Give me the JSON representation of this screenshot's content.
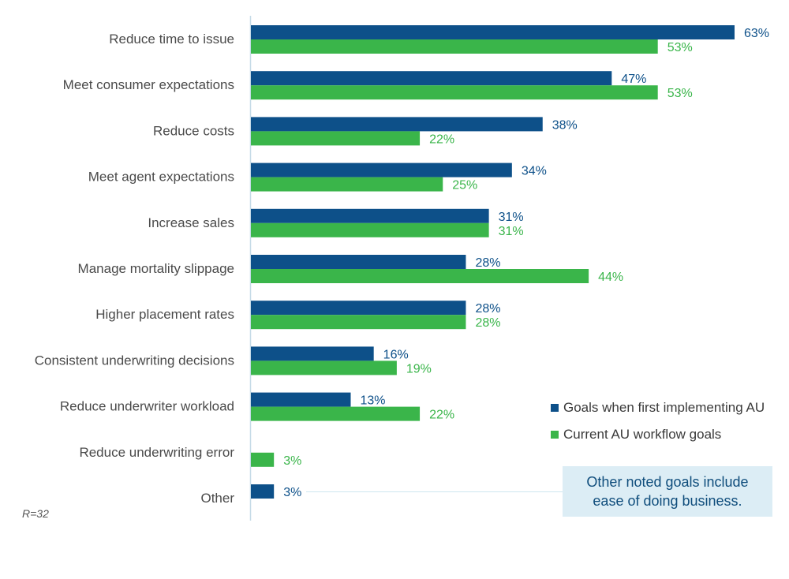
{
  "chart_data": {
    "type": "bar",
    "orientation": "horizontal",
    "categories": [
      "Reduce time to issue",
      "Meet consumer expectations",
      "Reduce costs",
      "Meet agent expectations",
      "Increase sales",
      "Manage mortality slippage",
      "Higher placement rates",
      "Consistent underwriting decisions",
      "Reduce underwriter workload",
      "Reduce underwriting error",
      "Other"
    ],
    "series": [
      {
        "name": "Goals when first implementing AU",
        "color": "#0d5089",
        "values": [
          63,
          47,
          38,
          34,
          31,
          28,
          28,
          16,
          13,
          null,
          3
        ]
      },
      {
        "name": "Current AU workflow goals",
        "color": "#3ab54a",
        "values": [
          53,
          53,
          22,
          25,
          31,
          44,
          28,
          19,
          22,
          3,
          null
        ]
      }
    ],
    "value_suffix": "%",
    "xlim": [
      0,
      63
    ],
    "grid": false,
    "legend_position": "bottom-right"
  },
  "note": "R=32",
  "callout": {
    "line1": "Other noted goals include",
    "line2": "ease of doing business."
  }
}
